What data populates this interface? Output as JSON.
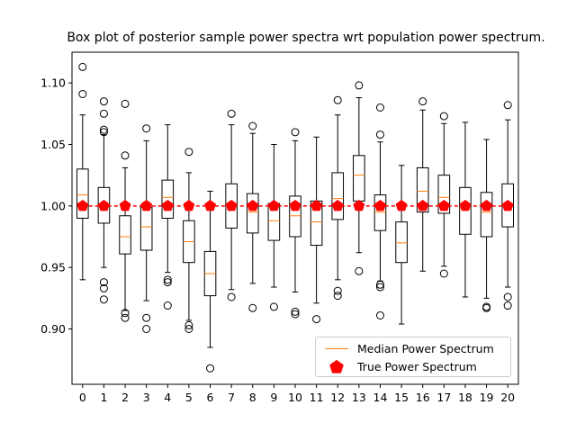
{
  "chart_data": {
    "type": "box",
    "title": "Box plot of posterior sample power spectra wrt population power spectrum.",
    "xlabel": "",
    "ylabel": "",
    "categories": [
      "0",
      "1",
      "2",
      "3",
      "4",
      "5",
      "6",
      "7",
      "8",
      "9",
      "10",
      "11",
      "12",
      "13",
      "14",
      "15",
      "16",
      "17",
      "18",
      "19",
      "20"
    ],
    "ylim": [
      0.855,
      1.125
    ],
    "yticks": [
      0.9,
      0.95,
      1.0,
      1.05,
      1.1
    ],
    "ytick_labels": [
      "0.90",
      "0.95",
      "1.00",
      "1.05",
      "1.10"
    ],
    "legend": {
      "position": "lower-right",
      "entries": [
        "Median Power Spectrum",
        "True Power Spectrum"
      ]
    },
    "colors": {
      "box": "#000000",
      "median": "#ff7f0e",
      "true": "#ff0000"
    },
    "boxes": [
      {
        "q1": 0.99,
        "median": 1.009,
        "q3": 1.03,
        "whislo": 0.94,
        "whishi": 1.074,
        "fliers": [
          1.113,
          1.091
        ]
      },
      {
        "q1": 0.986,
        "median": 1.001,
        "q3": 1.015,
        "whislo": 0.95,
        "whishi": 1.058,
        "fliers": [
          1.085,
          1.075,
          1.062,
          1.06,
          0.938,
          0.933,
          0.924
        ]
      },
      {
        "q1": 0.961,
        "median": 0.975,
        "q3": 0.992,
        "whislo": 0.915,
        "whishi": 1.031,
        "fliers": [
          1.083,
          1.041,
          0.913,
          0.909
        ]
      },
      {
        "q1": 0.964,
        "median": 0.983,
        "q3": 0.999,
        "whislo": 0.923,
        "whishi": 1.053,
        "fliers": [
          1.063,
          0.909,
          0.9
        ]
      },
      {
        "q1": 0.99,
        "median": 1.007,
        "q3": 1.021,
        "whislo": 0.946,
        "whishi": 1.066,
        "fliers": [
          0.94,
          0.938,
          0.919
        ]
      },
      {
        "q1": 0.954,
        "median": 0.971,
        "q3": 0.988,
        "whislo": 0.907,
        "whishi": 1.027,
        "fliers": [
          1.044,
          0.903,
          0.9
        ]
      },
      {
        "q1": 0.927,
        "median": 0.945,
        "q3": 0.963,
        "whislo": 0.885,
        "whishi": 1.012,
        "fliers": [
          0.868
        ]
      },
      {
        "q1": 0.982,
        "median": 1.0,
        "q3": 1.018,
        "whislo": 0.932,
        "whishi": 1.066,
        "fliers": [
          1.075,
          0.926
        ]
      },
      {
        "q1": 0.978,
        "median": 0.995,
        "q3": 1.01,
        "whislo": 0.937,
        "whishi": 1.059,
        "fliers": [
          1.065,
          0.917
        ]
      },
      {
        "q1": 0.972,
        "median": 0.988,
        "q3": 1.002,
        "whislo": 0.934,
        "whishi": 1.05,
        "fliers": [
          0.918
        ]
      },
      {
        "q1": 0.975,
        "median": 0.992,
        "q3": 1.008,
        "whislo": 0.93,
        "whishi": 1.053,
        "fliers": [
          1.06,
          0.914,
          0.912
        ]
      },
      {
        "q1": 0.968,
        "median": 0.987,
        "q3": 1.004,
        "whislo": 0.921,
        "whishi": 1.056,
        "fliers": [
          0.908
        ]
      },
      {
        "q1": 0.989,
        "median": 1.006,
        "q3": 1.027,
        "whislo": 0.94,
        "whishi": 1.074,
        "fliers": [
          1.086,
          0.931,
          0.927
        ]
      },
      {
        "q1": 1.004,
        "median": 1.025,
        "q3": 1.041,
        "whislo": 0.962,
        "whishi": 1.088,
        "fliers": [
          1.098,
          0.947
        ]
      },
      {
        "q1": 0.98,
        "median": 0.995,
        "q3": 1.009,
        "whislo": 0.939,
        "whishi": 1.052,
        "fliers": [
          1.08,
          1.058,
          0.936,
          0.934,
          0.911
        ]
      },
      {
        "q1": 0.954,
        "median": 0.97,
        "q3": 0.987,
        "whislo": 0.904,
        "whishi": 1.033,
        "fliers": []
      },
      {
        "q1": 0.995,
        "median": 1.012,
        "q3": 1.031,
        "whislo": 0.947,
        "whishi": 1.078,
        "fliers": [
          1.085
        ]
      },
      {
        "q1": 0.994,
        "median": 1.007,
        "q3": 1.025,
        "whislo": 0.951,
        "whishi": 1.067,
        "fliers": [
          1.073,
          0.945
        ]
      },
      {
        "q1": 0.977,
        "median": 0.998,
        "q3": 1.015,
        "whislo": 0.926,
        "whishi": 1.068,
        "fliers": []
      },
      {
        "q1": 0.975,
        "median": 0.995,
        "q3": 1.011,
        "whislo": 0.925,
        "whishi": 1.054,
        "fliers": [
          0.918,
          0.917
        ]
      },
      {
        "q1": 0.983,
        "median": 1.001,
        "q3": 1.018,
        "whislo": 0.934,
        "whishi": 1.07,
        "fliers": [
          1.082,
          0.926,
          0.919
        ]
      }
    ],
    "true_values": [
      1.0,
      1.0,
      1.0,
      1.0,
      1.0,
      1.0,
      1.0,
      1.0,
      1.0,
      1.0,
      1.0,
      1.0,
      1.0,
      1.0,
      1.0,
      1.0,
      1.0,
      1.0,
      1.0,
      1.0,
      1.0
    ]
  },
  "text": {
    "title": "Box plot of posterior sample power spectra wrt population power spectrum.",
    "legend_median": "Median Power Spectrum",
    "legend_true": "True Power Spectrum"
  }
}
